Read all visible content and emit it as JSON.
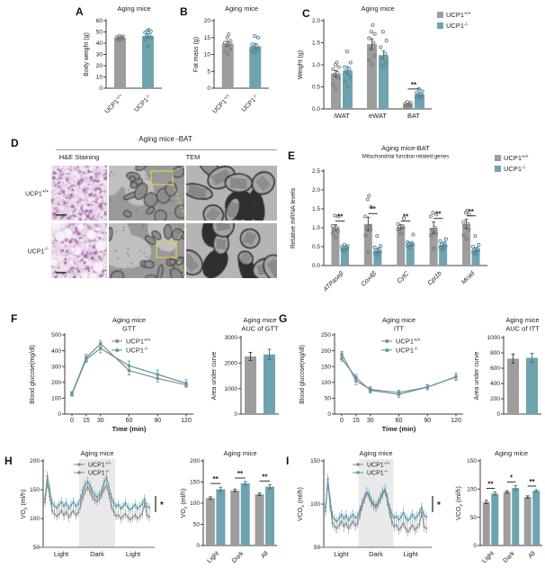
{
  "figure": {
    "colors": {
      "wt": "#9d9d9d",
      "ko": "#6fa3ad",
      "wt_line": "#8a8a8a",
      "ko_line": "#5d98a5",
      "wt_point": "#787878",
      "ko_point": "#4e8796",
      "wt_err": "#3c3c3c",
      "ko_err": "#41717c",
      "axis": "#3f3f3f",
      "band": "#e9e9e9",
      "sig": "#1a1a1a",
      "yellow": "#e3cf4e",
      "he_bg": "#e7d3e7",
      "tem_bg": "#999999"
    },
    "genotypes": [
      {
        "key": "wt",
        "label": "UCP1^+/+^"
      },
      {
        "key": "ko",
        "label": "UCP1^-/-^"
      }
    ]
  },
  "panels": {
    "A": {
      "letter": "A"
    },
    "B": {
      "letter": "B"
    },
    "C": {
      "letter": "C"
    },
    "D": {
      "letter": "D",
      "header": "Aging mice -BAT",
      "col_labels": [
        "H&E Staining",
        "TEM"
      ],
      "row_labels": [
        "UCP1^+/+^",
        "UCP1^-/-^"
      ]
    },
    "E": {
      "letter": "E"
    },
    "F": {
      "letter": "F"
    },
    "G": {
      "letter": "G"
    },
    "H": {
      "letter": "H"
    },
    "I": {
      "letter": "I"
    }
  },
  "chart_data": [
    {
      "id": "A",
      "type": "bar",
      "title": "Aging mice",
      "ylabel": "Body weight (g)",
      "ylim": [
        0,
        60
      ],
      "yticks": [
        0,
        10,
        20,
        30,
        40,
        50,
        60
      ],
      "ydec": 0,
      "bars": [
        {
          "label": "UCP1^+/+^",
          "key": "wt",
          "value": 45,
          "err": 0.8,
          "points": [
            42.5,
            43.5,
            44,
            44.5,
            45,
            45.5,
            46,
            46.5
          ]
        },
        {
          "label": "UCP1^-/-^",
          "key": "ko",
          "value": 46.5,
          "err": 1.8,
          "points": [
            37,
            43,
            45,
            46,
            47,
            49.5,
            50.5,
            51,
            52
          ]
        }
      ]
    },
    {
      "id": "B",
      "type": "bar",
      "title": "Aging mice",
      "ylabel": "Fat mass (g)",
      "ylim": [
        0,
        20
      ],
      "yticks": [
        0,
        5,
        10,
        15,
        20
      ],
      "ydec": 0,
      "bars": [
        {
          "label": "UCP1^+/+^",
          "key": "wt",
          "value": 13.2,
          "err": 0.7,
          "points": [
            10,
            11,
            11.5,
            12.5,
            13,
            13.5,
            14,
            15,
            16
          ]
        },
        {
          "label": "UCP1^-/-^",
          "key": "ko",
          "value": 12.4,
          "err": 0.8,
          "points": [
            10.5,
            11,
            11.5,
            12,
            12.5,
            13,
            15,
            15.5
          ]
        }
      ]
    },
    {
      "id": "C",
      "type": "grouped_bar",
      "title": "Aging mice",
      "ylabel": "Weight (g)",
      "ylim": [
        0,
        2
      ],
      "yticks": [
        0,
        0.5,
        1,
        1.5,
        2
      ],
      "ydec": 1,
      "legend": true,
      "categories": [
        "iWAT",
        "eWAT",
        "BAT"
      ],
      "series": [
        {
          "key": "wt",
          "values": [
            0.8,
            1.47,
            0.1
          ],
          "errors": [
            0.07,
            0.12,
            0.02
          ],
          "points": [
            [
              0.45,
              0.55,
              0.7,
              0.78,
              0.82,
              0.9,
              0.95,
              1,
              1.05
            ],
            [
              1,
              1.1,
              1.2,
              1.35,
              1.5,
              1.6,
              1.7,
              1.75,
              1.9
            ],
            [
              0.04,
              0.06,
              0.08,
              0.09,
              0.1,
              0.12,
              0.14,
              0.16
            ]
          ]
        },
        {
          "key": "ko",
          "values": [
            0.87,
            1.22,
            0.33
          ],
          "errors": [
            0.09,
            0.1,
            0.04
          ],
          "points": [
            [
              0.5,
              0.62,
              0.72,
              0.85,
              0.9,
              0.95,
              1.05,
              1.3
            ],
            [
              0.95,
              1,
              1.05,
              1.15,
              1.25,
              1.4,
              1.55,
              1.75
            ],
            [
              0.24,
              0.27,
              0.3,
              0.32,
              0.34,
              0.37,
              0.4,
              0.45
            ]
          ]
        }
      ],
      "sig": [
        {
          "cat": 2,
          "label": "**"
        }
      ]
    },
    {
      "id": "E",
      "type": "grouped_bar",
      "title": "Aging mice-BAT",
      "subtitle": "Mitochondrial function related genes",
      "ylabel": "Relative mRNA levels",
      "ylim": [
        0,
        2.5
      ],
      "yticks": [
        0,
        0.5,
        1,
        1.5,
        2,
        2.5
      ],
      "ydec": 1,
      "legend": true,
      "rot": true,
      "italic": true,
      "categories": [
        "ATPaseβ",
        "Cox4β",
        "CytC",
        "Cpt1b",
        "Mcad"
      ],
      "series": [
        {
          "key": "wt",
          "values": [
            1.0,
            1.1,
            1.02,
            1.0,
            1.1
          ],
          "errors": [
            0.08,
            0.18,
            0.06,
            0.15,
            0.12
          ],
          "points": [
            [
              0.75,
              0.85,
              0.9,
              0.95,
              1,
              1.05,
              1.3,
              1.32
            ],
            [
              0.35,
              0.8,
              0.95,
              1,
              1.05,
              1.3,
              1.55,
              1.75,
              1.85
            ],
            [
              0.85,
              0.95,
              1,
              1.02,
              1.05,
              1.1,
              1.25
            ],
            [
              0.45,
              0.8,
              0.85,
              0.95,
              1,
              1.3,
              1.35,
              1.4
            ],
            [
              0.7,
              0.8,
              0.95,
              1.05,
              1.1,
              1.15,
              1.35,
              1.4,
              1.45
            ]
          ]
        },
        {
          "key": "ko",
          "values": [
            0.46,
            0.4,
            0.56,
            0.55,
            0.42
          ],
          "errors": [
            0.04,
            0.05,
            0.04,
            0.05,
            0.05
          ],
          "points": [
            [
              0.38,
              0.42,
              0.44,
              0.46,
              0.48,
              0.5,
              0.52,
              0.55
            ],
            [
              0.28,
              0.32,
              0.36,
              0.4,
              0.44,
              0.48,
              0.52,
              0.78
            ],
            [
              0.48,
              0.52,
              0.55,
              0.58,
              0.6,
              0.62,
              0.82
            ],
            [
              0.42,
              0.48,
              0.52,
              0.56,
              0.6,
              0.65,
              0.7
            ],
            [
              0.3,
              0.35,
              0.4,
              0.42,
              0.45,
              0.5,
              0.55,
              0.78
            ]
          ]
        }
      ],
      "sig": [
        {
          "cat": 0,
          "label": "**"
        },
        {
          "cat": 1,
          "label": "**"
        },
        {
          "cat": 2,
          "label": "**"
        },
        {
          "cat": 3,
          "label": "**"
        },
        {
          "cat": 4,
          "label": "**"
        }
      ]
    },
    {
      "id": "F_gtt",
      "type": "line",
      "title": "Aging mice",
      "title2": "GTT",
      "ylabel": "Blood glucose(mg/dl)",
      "xlabel": "Time (min)",
      "x": [
        0,
        15,
        30,
        60,
        90,
        120
      ],
      "ylim": [
        0,
        500
      ],
      "yticks": [
        0,
        100,
        200,
        300,
        400,
        500
      ],
      "ydec": 0,
      "legend": true,
      "series": [
        {
          "key": "wt",
          "values": [
            130,
            355,
            445,
            275,
            225,
            185
          ],
          "errors": [
            12,
            22,
            20,
            28,
            22,
            15
          ]
        },
        {
          "key": "ko",
          "values": [
            125,
            345,
            415,
            305,
            250,
            195
          ],
          "errors": [
            12,
            20,
            28,
            30,
            28,
            22
          ]
        }
      ]
    },
    {
      "id": "F_auc",
      "type": "bar",
      "title": "Aging mice",
      "title2": "AUC of GTT",
      "ylabel": "Area under curve",
      "ylim": [
        0,
        3000
      ],
      "yticks": [
        0,
        1000,
        2000,
        3000
      ],
      "ydec": 0,
      "bars": [
        {
          "key": "wt",
          "value": 2260,
          "err": 160
        },
        {
          "key": "ko",
          "value": 2340,
          "err": 200
        }
      ]
    },
    {
      "id": "G_itt",
      "type": "line",
      "title": "Aging mice",
      "title2": "ITT",
      "ylabel": "Blood glucose(mg/dl)",
      "xlabel": "Time (min)",
      "x": [
        0,
        15,
        30,
        60,
        90,
        120
      ],
      "ylim": [
        0,
        250
      ],
      "yticks": [
        0,
        50,
        100,
        150,
        200,
        250
      ],
      "ydec": 0,
      "legend": true,
      "series": [
        {
          "key": "wt",
          "values": [
            190,
            105,
            78,
            68,
            85,
            118
          ],
          "errors": [
            8,
            12,
            8,
            8,
            8,
            10
          ]
        },
        {
          "key": "ko",
          "values": [
            175,
            115,
            75,
            62,
            85,
            117
          ],
          "errors": [
            8,
            10,
            8,
            10,
            8,
            10
          ]
        }
      ]
    },
    {
      "id": "G_auc",
      "type": "bar",
      "title": "Aging mice",
      "title2": "AUC of ITT",
      "ylabel": "Area under curve",
      "ylim": [
        0,
        1000
      ],
      "yticks": [
        0,
        200,
        400,
        600,
        800,
        1000
      ],
      "ydec": 0,
      "bars": [
        {
          "key": "wt",
          "value": 725,
          "err": 60
        },
        {
          "key": "ko",
          "value": 735,
          "err": 60
        }
      ]
    },
    {
      "id": "H_tc",
      "type": "timecourse",
      "title": "Aging mice",
      "ylabel": "VO~2~ (ml/h)",
      "ylim": [
        50,
        200
      ],
      "yticks": [
        50,
        100,
        150,
        200
      ],
      "ydec": 0,
      "legend": true,
      "err": 8,
      "annotation": "*",
      "bands": [
        "Light",
        "Dark",
        "Light"
      ],
      "series": [
        {
          "key": "wt",
          "values": [
            128,
            162,
            138,
            114,
            108,
            104,
            108,
            114,
            105,
            112,
            102,
            108,
            114,
            106,
            110,
            122,
            138,
            148,
            155,
            147,
            138,
            132,
            130,
            134,
            142,
            152,
            157,
            142,
            122,
            112,
            104,
            106,
            100,
            104,
            108,
            102,
            98,
            102,
            106,
            100,
            104,
            108,
            126,
            106,
            103
          ]
        },
        {
          "key": "ko",
          "values": [
            134,
            174,
            150,
            127,
            122,
            118,
            124,
            129,
            121,
            127,
            117,
            123,
            129,
            121,
            125,
            134,
            149,
            159,
            164,
            157,
            147,
            140,
            137,
            141,
            149,
            164,
            171,
            154,
            137,
            127,
            121,
            124,
            117,
            121,
            127,
            119,
            115,
            119,
            124,
            117,
            121,
            125,
            134,
            121,
            119
          ]
        }
      ]
    },
    {
      "id": "H_bar",
      "type": "grouped_bar",
      "title": "Aging mice",
      "ylabel": "VO~2~ (ml/h)",
      "ylim": [
        0,
        200
      ],
      "yticks": [
        0,
        50,
        100,
        150,
        200
      ],
      "ydec": 0,
      "rot": true,
      "categories": [
        "Light",
        "Dark",
        "All"
      ],
      "series": [
        {
          "key": "wt",
          "values": [
            112,
            130,
            121
          ],
          "errors": [
            3,
            3,
            3
          ]
        },
        {
          "key": "ko",
          "values": [
            133,
            147,
            139
          ],
          "errors": [
            5,
            4,
            5
          ]
        }
      ],
      "sig": [
        {
          "cat": 0,
          "label": "**"
        },
        {
          "cat": 1,
          "label": "**"
        },
        {
          "cat": 2,
          "label": "**"
        }
      ]
    },
    {
      "id": "I_tc",
      "type": "timecourse",
      "title": "Aging mice",
      "ylabel": "VCO~2~ (ml/h)",
      "ylim": [
        50,
        150
      ],
      "yticks": [
        50,
        100,
        150
      ],
      "ydec": 0,
      "legend": true,
      "err": 6,
      "annotation": "*",
      "bands": [
        "Light",
        "Dark",
        "Light"
      ],
      "series": [
        {
          "key": "wt",
          "values": [
            92,
            124,
            98,
            78,
            74,
            72,
            76,
            80,
            74,
            78,
            72,
            76,
            80,
            75,
            78,
            88,
            98,
            106,
            113,
            109,
            102,
            98,
            96,
            100,
            106,
            112,
            115,
            104,
            90,
            80,
            74,
            76,
            70,
            73,
            78,
            72,
            68,
            72,
            76,
            70,
            73,
            77,
            90,
            74,
            72
          ]
        },
        {
          "key": "ko",
          "values": [
            96,
            129,
            105,
            86,
            82,
            80,
            84,
            88,
            83,
            87,
            81,
            85,
            88,
            84,
            86,
            93,
            101,
            108,
            114,
            111,
            104,
            100,
            98,
            102,
            108,
            114,
            117,
            107,
            95,
            88,
            84,
            86,
            82,
            85,
            90,
            84,
            81,
            84,
            88,
            83,
            86,
            90,
            96,
            87,
            85
          ]
        }
      ]
    },
    {
      "id": "I_bar",
      "type": "grouped_bar",
      "title": "Aging mice",
      "ylabel": "VCO~2~ (ml/h)",
      "ylim": [
        0,
        150
      ],
      "yticks": [
        0,
        50,
        100,
        150
      ],
      "ydec": 0,
      "rot": true,
      "categories": [
        "Light",
        "Dark",
        "All"
      ],
      "series": [
        {
          "key": "wt",
          "values": [
            77,
            95,
            86
          ],
          "errors": [
            3,
            2,
            2
          ]
        },
        {
          "key": "ko",
          "values": [
            92,
            102,
            97
          ],
          "errors": [
            3,
            4,
            2
          ]
        }
      ],
      "sig": [
        {
          "cat": 0,
          "label": "**"
        },
        {
          "cat": 1,
          "label": "*"
        },
        {
          "cat": 2,
          "label": "**"
        }
      ]
    }
  ]
}
